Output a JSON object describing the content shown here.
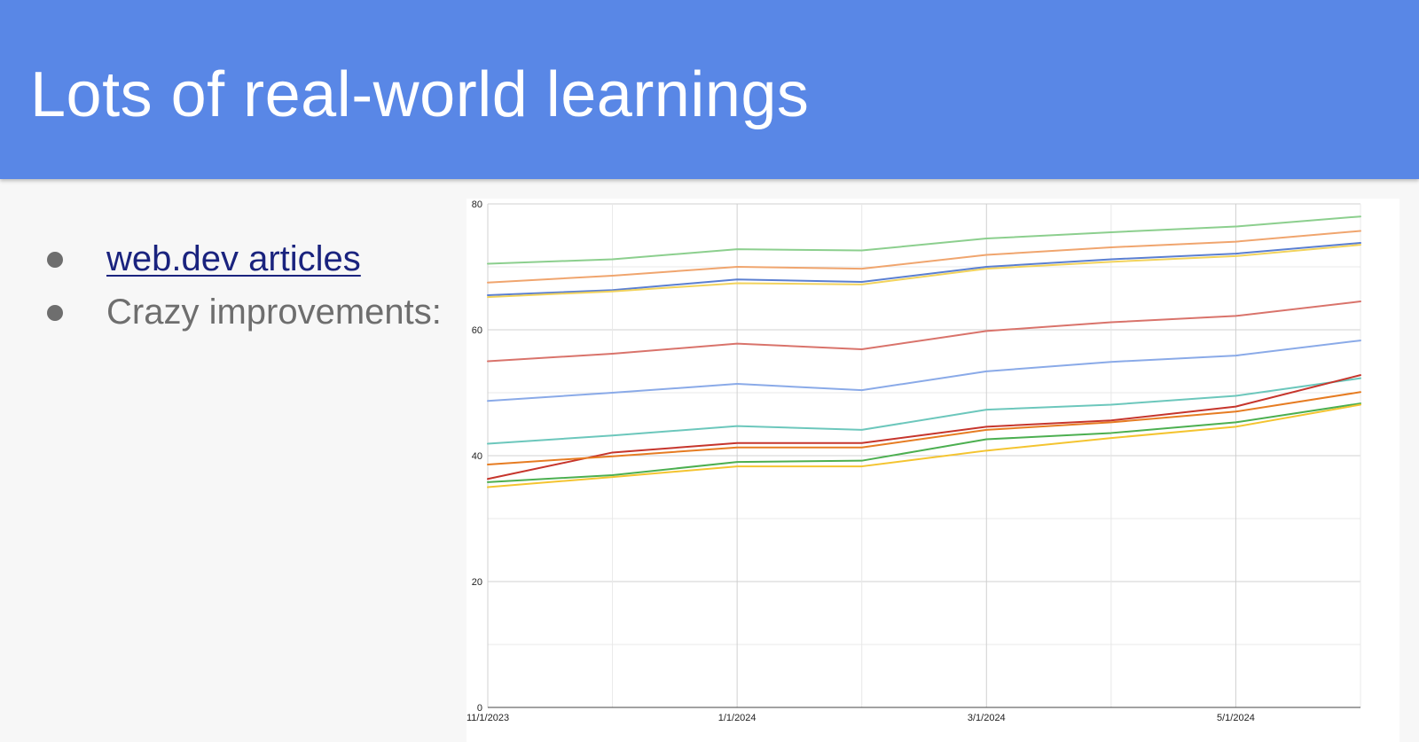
{
  "slide": {
    "title": "Lots of real-world learnings",
    "bullets": [
      {
        "text": "web.dev articles",
        "is_link": true
      },
      {
        "text": "Crazy improvements:",
        "is_link": false
      }
    ],
    "colors": {
      "header_bg": "#5987e6",
      "title_text": "#ffffff",
      "bullet_text": "#6e6e6e",
      "link_text": "#1a237e"
    }
  },
  "chart_data": {
    "type": "line",
    "title": "",
    "xlabel": "",
    "ylabel": "",
    "ylim": [
      0,
      80
    ],
    "yticks": [
      0,
      20,
      40,
      60,
      80
    ],
    "grid": true,
    "legend": "none",
    "x": [
      "11/1/2023",
      "12/1/2023",
      "1/1/2024",
      "2/1/2024",
      "3/1/2024",
      "4/1/2024",
      "5/1/2024",
      "6/1/2024"
    ],
    "x_tick_labels": [
      "11/1/2023",
      "1/1/2024",
      "3/1/2024",
      "5/1/2024"
    ],
    "series": [
      {
        "color": "#8ccf8e",
        "values": [
          70.5,
          71.2,
          72.8,
          72.6,
          74.5,
          75.5,
          76.4,
          78.0
        ]
      },
      {
        "color": "#f0a56e",
        "values": [
          67.5,
          68.6,
          70.0,
          69.7,
          71.9,
          73.1,
          74.0,
          75.7
        ]
      },
      {
        "color": "#5b7fd1",
        "values": [
          65.5,
          66.3,
          68.0,
          67.6,
          70.0,
          71.2,
          72.1,
          73.8
        ]
      },
      {
        "color": "#f2d35c",
        "values": [
          65.2,
          66.1,
          67.4,
          67.2,
          69.7,
          70.8,
          71.7,
          73.5
        ]
      },
      {
        "color": "#d9736b",
        "values": [
          55.0,
          56.2,
          57.8,
          56.9,
          59.8,
          61.2,
          62.2,
          64.5
        ]
      },
      {
        "color": "#8aaae8",
        "values": [
          48.7,
          50.0,
          51.4,
          50.4,
          53.4,
          54.9,
          55.9,
          58.3
        ]
      },
      {
        "color": "#6cc7bc",
        "values": [
          41.9,
          43.2,
          44.7,
          44.1,
          47.3,
          48.1,
          49.5,
          52.3
        ]
      },
      {
        "color": "#c6352c",
        "values": [
          36.3,
          40.5,
          42.0,
          42.0,
          44.6,
          45.6,
          47.8,
          52.8
        ]
      },
      {
        "color": "#e67c22",
        "values": [
          38.6,
          39.9,
          41.3,
          41.3,
          44.1,
          45.3,
          47.0,
          50.1
        ]
      },
      {
        "color": "#4caf50",
        "values": [
          35.8,
          36.9,
          39.0,
          39.2,
          42.6,
          43.6,
          45.3,
          48.3
        ]
      },
      {
        "color": "#f4c430",
        "values": [
          35.0,
          36.6,
          38.3,
          38.3,
          40.8,
          42.8,
          44.6,
          48.1
        ]
      }
    ]
  }
}
